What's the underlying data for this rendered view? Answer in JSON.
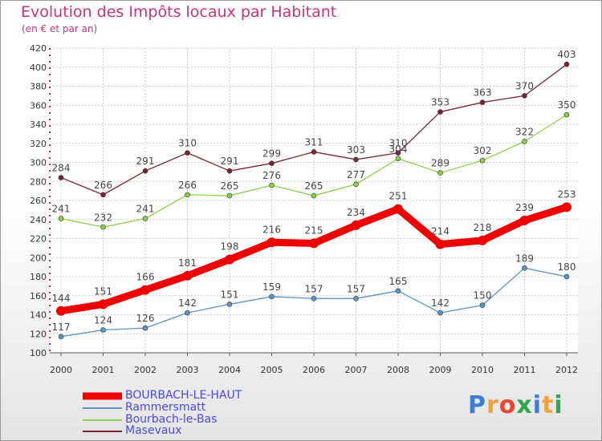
{
  "title": "Evolution des Impôts locaux par Habitant",
  "subtitle": "(en € et par an)",
  "logo": {
    "letters": [
      "P",
      "r",
      "o",
      "x",
      "i",
      "t",
      "i"
    ],
    "colors": [
      "#3a7fd4",
      "#f2a23a",
      "#e8462e",
      "#2ea84a",
      "#3a7fd4",
      "#f2a23a",
      "#2ea84a"
    ]
  },
  "chart_data": {
    "type": "line",
    "categories": [
      "2000",
      "2001",
      "2002",
      "2003",
      "2004",
      "2005",
      "2006",
      "2007",
      "2008",
      "2009",
      "2010",
      "2011",
      "2012"
    ],
    "ylim": [
      100,
      420
    ],
    "yticks": [
      100,
      120,
      140,
      160,
      180,
      200,
      220,
      240,
      260,
      280,
      300,
      320,
      340,
      360,
      380,
      400,
      420
    ],
    "grid": true,
    "series": [
      {
        "name": "BOURBACH-LE-HAUT",
        "color": "#ee0000",
        "values": [
          144,
          151,
          166,
          181,
          198,
          216,
          215,
          234,
          251,
          214,
          218,
          239,
          253
        ]
      },
      {
        "name": "Rammersmatt",
        "color": "#5b94c8",
        "values": [
          117,
          124,
          126,
          142,
          151,
          159,
          157,
          157,
          165,
          142,
          150,
          189,
          180
        ]
      },
      {
        "name": "Bourbach-le-Bas",
        "color": "#8bd04a",
        "values": [
          241,
          232,
          241,
          266,
          265,
          276,
          265,
          277,
          304,
          289,
          302,
          322,
          350
        ]
      },
      {
        "name": "Masevaux",
        "color": "#7a2630",
        "values": [
          284,
          266,
          291,
          310,
          291,
          299,
          311,
          303,
          310,
          353,
          363,
          370,
          403
        ]
      }
    ]
  }
}
